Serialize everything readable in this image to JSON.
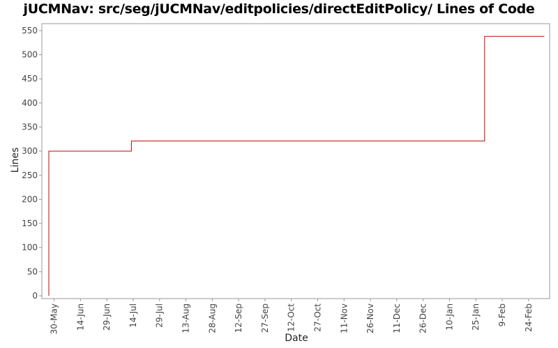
{
  "chart_data": {
    "type": "line",
    "step": true,
    "title": "jUCMNav: src/seg/jUCMNav/editpolicies/directEditPolicy/ Lines of Code",
    "xlabel": "Date",
    "ylabel": "Lines",
    "ylim": [
      0,
      560
    ],
    "yticks": [
      0,
      50,
      100,
      150,
      200,
      250,
      300,
      350,
      400,
      450,
      500,
      550
    ],
    "xticks": [
      "30-May",
      "14-Jun",
      "29-Jun",
      "14-Jul",
      "29-Jul",
      "13-Aug",
      "28-Aug",
      "12-Sep",
      "27-Sep",
      "12-Oct",
      "27-Oct",
      "11-Nov",
      "26-Nov",
      "11-Dec",
      "26-Dec",
      "10-Jan",
      "25-Jan",
      "9-Feb",
      "24-Feb"
    ],
    "xlim": [
      "2005-05-25",
      "2006-03-08"
    ],
    "grid": false,
    "legend": "none",
    "series": [
      {
        "color": "#cc0000",
        "points": [
          {
            "x": "2005-05-27",
            "y": 0
          },
          {
            "x": "2005-05-27",
            "y": 300
          },
          {
            "x": "2005-07-13",
            "y": 300
          },
          {
            "x": "2005-07-13",
            "y": 321
          },
          {
            "x": "2006-01-30",
            "y": 321
          },
          {
            "x": "2006-01-30",
            "y": 538
          },
          {
            "x": "2006-03-05",
            "y": 538
          }
        ]
      }
    ]
  }
}
